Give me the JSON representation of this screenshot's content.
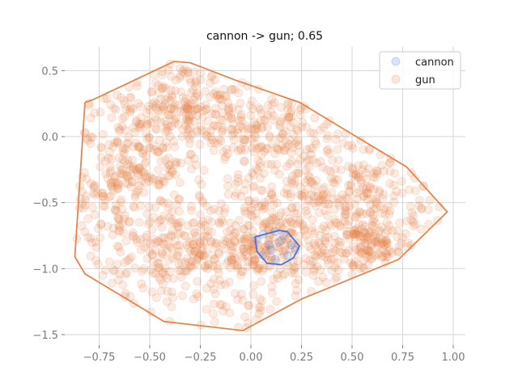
{
  "chart_data": {
    "type": "scatter",
    "title": "cannon -> gun; 0.65",
    "xlabel": "",
    "ylabel": "",
    "xlim": [
      -0.92,
      1.06
    ],
    "ylim": [
      -1.58,
      0.68
    ],
    "x_ticks": [
      -0.75,
      -0.5,
      -0.25,
      0.0,
      0.25,
      0.5,
      0.75,
      1.0
    ],
    "x_tick_labels": [
      "−0.75",
      "−0.50",
      "−0.25",
      "0.00",
      "0.25",
      "0.50",
      "0.75",
      "1.00"
    ],
    "y_ticks": [
      0.5,
      0.0,
      -0.5,
      -1.0,
      -1.5
    ],
    "y_tick_labels": [
      "0.5",
      "0.0",
      "−0.5",
      "−1.0",
      "−1.5"
    ],
    "grid": true,
    "legend_placement": "top-right",
    "series": [
      {
        "name": "cannon",
        "color": "#4c72d0",
        "points": [
          [
            0.03,
            -0.78
          ],
          [
            0.06,
            -0.74
          ],
          [
            0.12,
            -0.72
          ],
          [
            0.16,
            -0.75
          ],
          [
            0.2,
            -0.82
          ],
          [
            0.22,
            -0.86
          ],
          [
            0.18,
            -0.9
          ],
          [
            0.12,
            -0.93
          ],
          [
            0.06,
            -0.9
          ],
          [
            0.09,
            -0.82
          ],
          [
            0.14,
            -0.8
          ],
          [
            0.1,
            -0.86
          ]
        ],
        "hull": [
          [
            0.02,
            -0.76
          ],
          [
            0.14,
            -0.71
          ],
          [
            0.18,
            -0.72
          ],
          [
            0.24,
            -0.83
          ],
          [
            0.21,
            -0.92
          ],
          [
            0.15,
            -0.97
          ],
          [
            0.08,
            -0.96
          ],
          [
            0.03,
            -0.87
          ]
        ]
      },
      {
        "name": "gun",
        "color": "#e8834a",
        "n_points": 1600,
        "hull": [
          [
            -0.82,
            0.26
          ],
          [
            -0.78,
            0.28
          ],
          [
            -0.38,
            0.57
          ],
          [
            -0.3,
            0.56
          ],
          [
            -0.08,
            0.43
          ],
          [
            0.24,
            0.26
          ],
          [
            0.77,
            -0.23
          ],
          [
            0.97,
            -0.57
          ],
          [
            0.73,
            -0.93
          ],
          [
            0.25,
            -1.23
          ],
          [
            -0.04,
            -1.47
          ],
          [
            -0.43,
            -1.4
          ],
          [
            -0.82,
            -1.04
          ],
          [
            -0.87,
            -0.91
          ]
        ]
      }
    ]
  }
}
